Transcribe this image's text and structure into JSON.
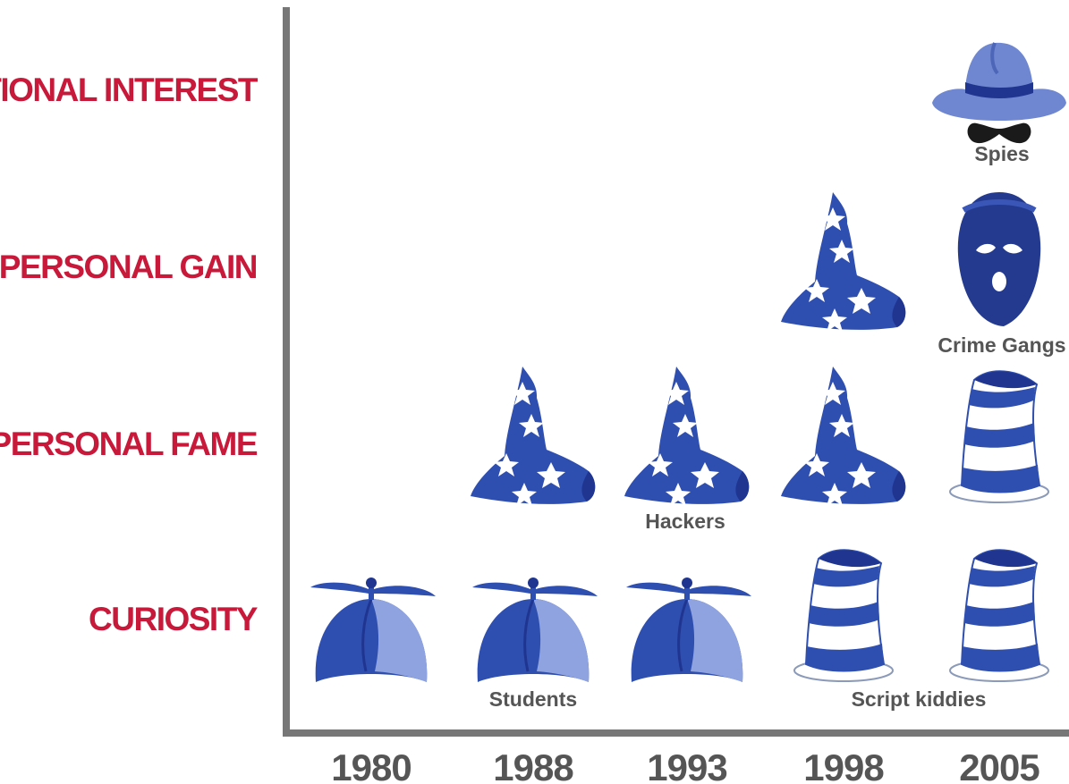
{
  "chart_data": {
    "type": "scatter",
    "title": "",
    "xlabel": "",
    "ylabel": "",
    "categories": [
      "1980",
      "1988",
      "1993",
      "1998",
      "2005"
    ],
    "levels": [
      "CURIOSITY",
      "PERSONAL FAME",
      "PERSONAL GAIN",
      "NATIONAL INTEREST"
    ],
    "colors": {
      "accent": "#c8193a",
      "axis": "#777777",
      "text": "#555555",
      "hat_blue": "#2f4fb0",
      "hat_dark": "#1f3590",
      "hat_light": "#8fa3e0",
      "fedora": "#6f87d1"
    },
    "points": [
      {
        "x": "1980",
        "y": "CURIOSITY",
        "icon": "propeller-beanie-icon"
      },
      {
        "x": "1988",
        "y": "CURIOSITY",
        "icon": "propeller-beanie-icon"
      },
      {
        "x": "1993",
        "y": "CURIOSITY",
        "icon": "propeller-beanie-icon"
      },
      {
        "x": "1998",
        "y": "CURIOSITY",
        "icon": "striped-top-hat-icon"
      },
      {
        "x": "2005",
        "y": "CURIOSITY",
        "icon": "striped-top-hat-icon"
      },
      {
        "x": "1988",
        "y": "PERSONAL FAME",
        "icon": "wizard-hat-icon"
      },
      {
        "x": "1993",
        "y": "PERSONAL FAME",
        "icon": "wizard-hat-icon"
      },
      {
        "x": "1998",
        "y": "PERSONAL FAME",
        "icon": "wizard-hat-icon"
      },
      {
        "x": "2005",
        "y": "PERSONAL FAME",
        "icon": "striped-top-hat-icon"
      },
      {
        "x": "1998",
        "y": "PERSONAL GAIN",
        "icon": "wizard-hat-icon"
      },
      {
        "x": "2005",
        "y": "PERSONAL GAIN",
        "icon": "balaclava-icon"
      },
      {
        "x": "2005",
        "y": "NATIONAL INTEREST",
        "icon": "fedora-mask-icon"
      }
    ],
    "annotations": [
      {
        "text": "Students",
        "x": "1988",
        "y": "CURIOSITY"
      },
      {
        "text": "Script kiddies",
        "x": "1998-2005",
        "y": "CURIOSITY"
      },
      {
        "text": "Hackers",
        "x": "1993",
        "y": "PERSONAL FAME"
      },
      {
        "text": "Crime Gangs",
        "x": "2005",
        "y": "PERSONAL GAIN"
      },
      {
        "text": "Spies",
        "x": "2005",
        "y": "NATIONAL INTEREST"
      }
    ],
    "grid": false,
    "legend": "none"
  }
}
